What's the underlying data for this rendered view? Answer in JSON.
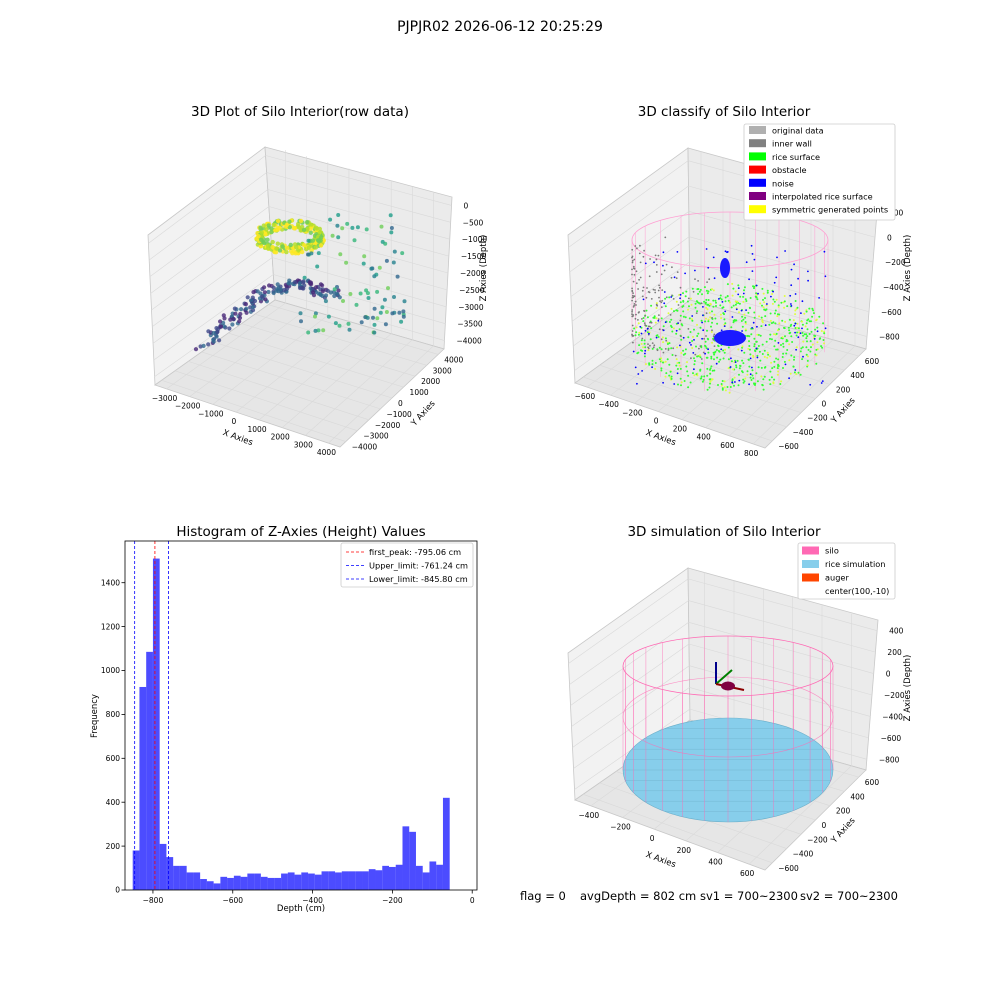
{
  "suptitle": "PJPJR02 2026-06-12 20:25:29",
  "footer": {
    "flag": "flag = 0",
    "avg_depth": "avgDepth = 802 cm",
    "sv1": "sv1 = 700~2300",
    "sv2": "sv2 = 700~2300"
  },
  "chart_data": [
    {
      "id": "raw",
      "type": "scatter",
      "projection": "3d",
      "title": "3D Plot of Silo Interior(row data)",
      "xlabel": "X Axies",
      "ylabel": "Y Axies",
      "zlabel": "Z Axies (Depth)",
      "xticks": [
        "−3000",
        "−2000",
        "−1000",
        "0",
        "1000",
        "2000",
        "3000",
        "4000"
      ],
      "yticks": [
        "−4000",
        "−3000",
        "−2000",
        "−1000",
        "0",
        "1000",
        "2000",
        "3000",
        "4000"
      ],
      "zticks": [
        "−4000",
        "−3500",
        "−3000",
        "−2500",
        "−2000",
        "−1500",
        "−1000",
        "−500",
        "0"
      ],
      "colormap": "viridis",
      "grid": true
    },
    {
      "id": "classify",
      "type": "scatter",
      "projection": "3d",
      "title": "3D classify of Silo Interior",
      "xlabel": "X Axies",
      "ylabel": "Y Axies",
      "zlabel": "Z Axies (Depth)",
      "xticks": [
        "−600",
        "−400",
        "−200",
        "0",
        "200",
        "400",
        "600",
        "800"
      ],
      "yticks": [
        "−600",
        "−400",
        "−200",
        "0",
        "200",
        "400",
        "600"
      ],
      "zticks": [
        "−800",
        "−600",
        "−400",
        "−200",
        "0",
        "200"
      ],
      "legend_position": "top-right",
      "legend": [
        {
          "label": "original data",
          "color": "#b0b0b0"
        },
        {
          "label": "inner wall",
          "color": "#808080"
        },
        {
          "label": "rice surface",
          "color": "#00ff00"
        },
        {
          "label": "obstacle",
          "color": "#ff0000"
        },
        {
          "label": "noise",
          "color": "#0000ff"
        },
        {
          "label": "interpolated rice surface",
          "color": "#800080"
        },
        {
          "label": "symmetric generated points",
          "color": "#ffff00"
        }
      ],
      "grid": true
    },
    {
      "id": "hist",
      "type": "bar",
      "title": "Histogram of Z-Axies (Height) Values",
      "xlabel": "Depth (cm)",
      "ylabel": "Frequency",
      "xlim": [
        -870,
        12
      ],
      "ylim": [
        0,
        1590
      ],
      "xticks": [
        -800,
        -600,
        -400,
        -200,
        0
      ],
      "xtick_labels": [
        "−800",
        "−600",
        "−400",
        "−200",
        "0"
      ],
      "yticks": [
        0,
        200,
        400,
        600,
        800,
        1000,
        1200,
        1400
      ],
      "yticks_labels": [
        "0",
        "200",
        "400",
        "600",
        "800",
        "1000",
        "1200",
        "1400"
      ],
      "bar_color": "#0000ff",
      "bar_opacity": 0.7,
      "bin_width": 16.9,
      "bins_start": -850.7,
      "values": [
        180,
        925,
        1085,
        1510,
        210,
        150,
        110,
        110,
        80,
        80,
        50,
        40,
        30,
        60,
        55,
        65,
        60,
        75,
        75,
        60,
        55,
        55,
        75,
        80,
        70,
        80,
        75,
        70,
        85,
        85,
        80,
        85,
        85,
        85,
        85,
        95,
        90,
        110,
        105,
        115,
        290,
        265,
        110,
        80,
        130,
        115,
        420
      ],
      "vlines": [
        {
          "label": "first_peak: -795.06 cm",
          "x": -795.06,
          "color": "#ff0000"
        },
        {
          "label": "Upper_limit: -761.24 cm",
          "x": -761.24,
          "color": "#0000ff"
        },
        {
          "label": "Lower_limit: -845.80 cm",
          "x": -845.8,
          "color": "#0000ff"
        }
      ],
      "legend_position": "top-right"
    },
    {
      "id": "sim",
      "type": "scatter",
      "projection": "3d",
      "title": "3D simulation of Silo Interior",
      "xlabel": "X Axies",
      "ylabel": "Y Axies",
      "zlabel": "Z Axies (Depth)",
      "xticks": [
        "−400",
        "−200",
        "0",
        "200",
        "400",
        "600"
      ],
      "yticks": [
        "−600",
        "−400",
        "−200",
        "0",
        "200",
        "400",
        "600"
      ],
      "zticks": [
        "−800",
        "−600",
        "−400",
        "−200",
        "0",
        "200",
        "400"
      ],
      "legend_position": "top-right",
      "legend": [
        {
          "label": "silo",
          "color": "#ff69b4"
        },
        {
          "label": "rice simulation",
          "color": "#87ceeb"
        },
        {
          "label": "auger",
          "color": "#ff4500"
        },
        {
          "label": "center(100,-10)",
          "color": ""
        }
      ],
      "grid": true
    }
  ]
}
